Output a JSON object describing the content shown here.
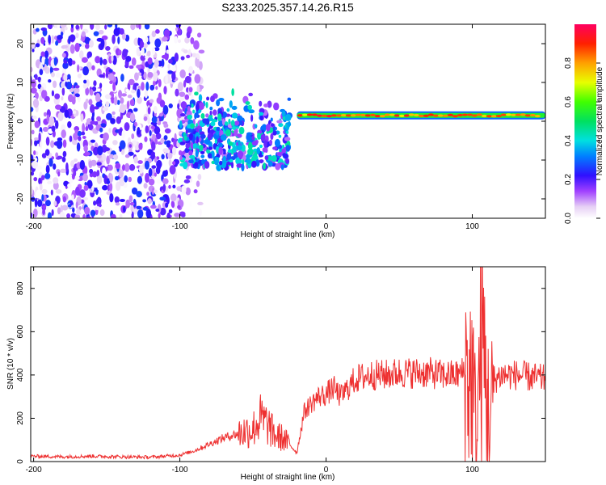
{
  "title": "S233.2025.357.14.26.R15",
  "chart_data": [
    {
      "type": "heatmap",
      "name": "spectrogram",
      "xlabel": "Height of straight line (km)",
      "ylabel": "Frequency (Hz)",
      "xlim": [
        -202,
        150
      ],
      "ylim": [
        -25,
        25
      ],
      "xticks": [
        -200,
        -100,
        0,
        100
      ],
      "yticks": [
        -20,
        -10,
        0,
        10,
        20
      ],
      "colorbar": {
        "label": "Normalized spectral amplitude",
        "range": [
          0,
          1
        ],
        "ticks": [
          0.0,
          0.2,
          0.4,
          0.6,
          0.8
        ]
      },
      "features": [
        {
          "x": [
            -202,
            -85
          ],
          "y": [
            -25,
            25
          ],
          "amplitude": 0.15,
          "kind": "scattered noise"
        },
        {
          "x": [
            -100,
            -25
          ],
          "y": [
            -12,
            8
          ],
          "amplitude": 0.3,
          "kind": "broadband burst"
        },
        {
          "x": [
            -20,
            150
          ],
          "y": [
            0,
            3
          ],
          "amplitude": 0.85,
          "kind": "narrow tone"
        }
      ]
    },
    {
      "type": "line",
      "name": "snr",
      "xlabel": "Height of straight line (km)",
      "ylabel": "SNR (10 * v/v)",
      "xlim": [
        -202,
        150
      ],
      "ylim": [
        0,
        900
      ],
      "xticks": [
        -200,
        -100,
        0,
        100
      ],
      "yticks": [
        0,
        200,
        400,
        600,
        800
      ],
      "color": "#ee3030",
      "x": [
        -202,
        -180,
        -160,
        -140,
        -120,
        -100,
        -90,
        -80,
        -70,
        -60,
        -50,
        -45,
        -40,
        -35,
        -30,
        -25,
        -20,
        -15,
        -10,
        -5,
        0,
        5,
        10,
        15,
        20,
        30,
        40,
        50,
        60,
        70,
        80,
        90,
        95,
        100,
        103,
        106,
        109,
        112,
        115,
        120,
        130,
        140,
        150
      ],
      "y": [
        25,
        22,
        25,
        22,
        20,
        30,
        50,
        80,
        110,
        130,
        150,
        200,
        170,
        120,
        110,
        80,
        40,
        230,
        270,
        300,
        310,
        340,
        300,
        340,
        380,
        400,
        400,
        410,
        410,
        410,
        400,
        400,
        420,
        380,
        100,
        600,
        400,
        150,
        380,
        400,
        400,
        390,
        380
      ]
    }
  ]
}
